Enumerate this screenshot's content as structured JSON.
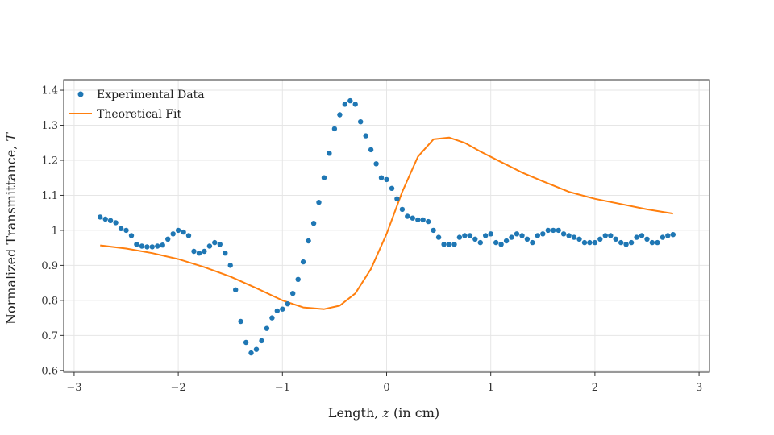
{
  "chart_data": {
    "type": "scatter",
    "xlabel": "Length,",
    "xlabel_var": "z",
    "xlabel_unit": "(in cm)",
    "ylabel": "Normalized Transmittance,",
    "ylabel_var": "T",
    "xlim": [
      -3.1,
      3.1
    ],
    "ylim": [
      0.595,
      1.43
    ],
    "xticks": [
      -3,
      -2,
      -1,
      0,
      1,
      2,
      3
    ],
    "xtick_labels": [
      "−3",
      "−2",
      "−1",
      "0",
      "1",
      "2",
      "3"
    ],
    "yticks": [
      0.6,
      0.7,
      0.8,
      0.9,
      1.0,
      1.1,
      1.2,
      1.3,
      1.4
    ],
    "ytick_labels": [
      "0.6",
      "0.7",
      "0.8",
      "0.9",
      "1",
      "1.1",
      "1.2",
      "1.3",
      "1.4"
    ],
    "grid": true,
    "legend_position": "top-left",
    "colors": {
      "experimental": "#1f77b4",
      "fit": "#ff7f0e"
    },
    "series": [
      {
        "name": "Experimental Data",
        "mode": "markers",
        "x": [
          -2.75,
          -2.7,
          -2.65,
          -2.6,
          -2.55,
          -2.5,
          -2.45,
          -2.4,
          -2.35,
          -2.3,
          -2.25,
          -2.2,
          -2.15,
          -2.1,
          -2.05,
          -2.0,
          -1.95,
          -1.9,
          -1.85,
          -1.8,
          -1.75,
          -1.7,
          -1.65,
          -1.6,
          -1.55,
          -1.5,
          -1.45,
          -1.4,
          -1.35,
          -1.3,
          -1.25,
          -1.2,
          -1.15,
          -1.1,
          -1.05,
          -1.0,
          -0.95,
          -0.9,
          -0.85,
          -0.8,
          -0.75,
          -0.7,
          -0.65,
          -0.6,
          -0.55,
          -0.5,
          -0.45,
          -0.4,
          -0.35,
          -0.3,
          -0.25,
          -0.2,
          -0.15,
          -0.1,
          -0.05,
          0.0,
          0.05,
          0.1,
          0.15,
          0.2,
          0.25,
          0.3,
          0.35,
          0.4,
          0.45,
          0.5,
          0.55,
          0.6,
          0.65,
          0.7,
          0.75,
          0.8,
          0.85,
          0.9,
          0.95,
          1.0,
          1.05,
          1.1,
          1.15,
          1.2,
          1.25,
          1.3,
          1.35,
          1.4,
          1.45,
          1.5,
          1.55,
          1.6,
          1.65,
          1.7,
          1.75,
          1.8,
          1.85,
          1.9,
          1.95,
          2.0,
          2.05,
          2.1,
          2.15,
          2.2,
          2.25,
          2.3,
          2.35,
          2.4,
          2.45,
          2.5,
          2.55,
          2.6,
          2.65,
          2.7,
          2.75
        ],
        "y": [
          1.038,
          1.032,
          1.028,
          1.022,
          1.005,
          1.0,
          0.985,
          0.96,
          0.955,
          0.953,
          0.953,
          0.955,
          0.958,
          0.975,
          0.99,
          1.0,
          0.995,
          0.985,
          0.94,
          0.935,
          0.94,
          0.955,
          0.965,
          0.96,
          0.935,
          0.9,
          0.83,
          0.74,
          0.68,
          0.65,
          0.66,
          0.685,
          0.72,
          0.75,
          0.77,
          0.775,
          0.79,
          0.82,
          0.86,
          0.91,
          0.97,
          1.02,
          1.08,
          1.15,
          1.22,
          1.29,
          1.33,
          1.36,
          1.37,
          1.36,
          1.31,
          1.27,
          1.23,
          1.19,
          1.15,
          1.145,
          1.12,
          1.09,
          1.06,
          1.04,
          1.035,
          1.03,
          1.03,
          1.025,
          1.0,
          0.98,
          0.96,
          0.96,
          0.96,
          0.98,
          0.985,
          0.985,
          0.975,
          0.965,
          0.985,
          0.99,
          0.965,
          0.96,
          0.97,
          0.98,
          0.99,
          0.985,
          0.975,
          0.965,
          0.985,
          0.99,
          1.0,
          1.0,
          1.0,
          0.99,
          0.985,
          0.98,
          0.975,
          0.965,
          0.965,
          0.965,
          0.975,
          0.985,
          0.985,
          0.975,
          0.965,
          0.96,
          0.965,
          0.98,
          0.985,
          0.975,
          0.965,
          0.965,
          0.98,
          0.985,
          0.988
        ]
      },
      {
        "name": "Theoretical Fit",
        "mode": "lines",
        "x": [
          -2.75,
          -2.5,
          -2.25,
          -2.0,
          -1.75,
          -1.5,
          -1.25,
          -1.0,
          -0.8,
          -0.6,
          -0.45,
          -0.3,
          -0.15,
          0.0,
          0.15,
          0.3,
          0.45,
          0.6,
          0.75,
          0.9,
          1.1,
          1.3,
          1.5,
          1.75,
          2.0,
          2.25,
          2.5,
          2.75
        ],
        "y": [
          0.957,
          0.948,
          0.935,
          0.918,
          0.895,
          0.868,
          0.835,
          0.8,
          0.78,
          0.775,
          0.785,
          0.82,
          0.89,
          0.99,
          1.11,
          1.21,
          1.26,
          1.265,
          1.25,
          1.225,
          1.195,
          1.165,
          1.14,
          1.11,
          1.09,
          1.075,
          1.06,
          1.048
        ]
      }
    ]
  }
}
